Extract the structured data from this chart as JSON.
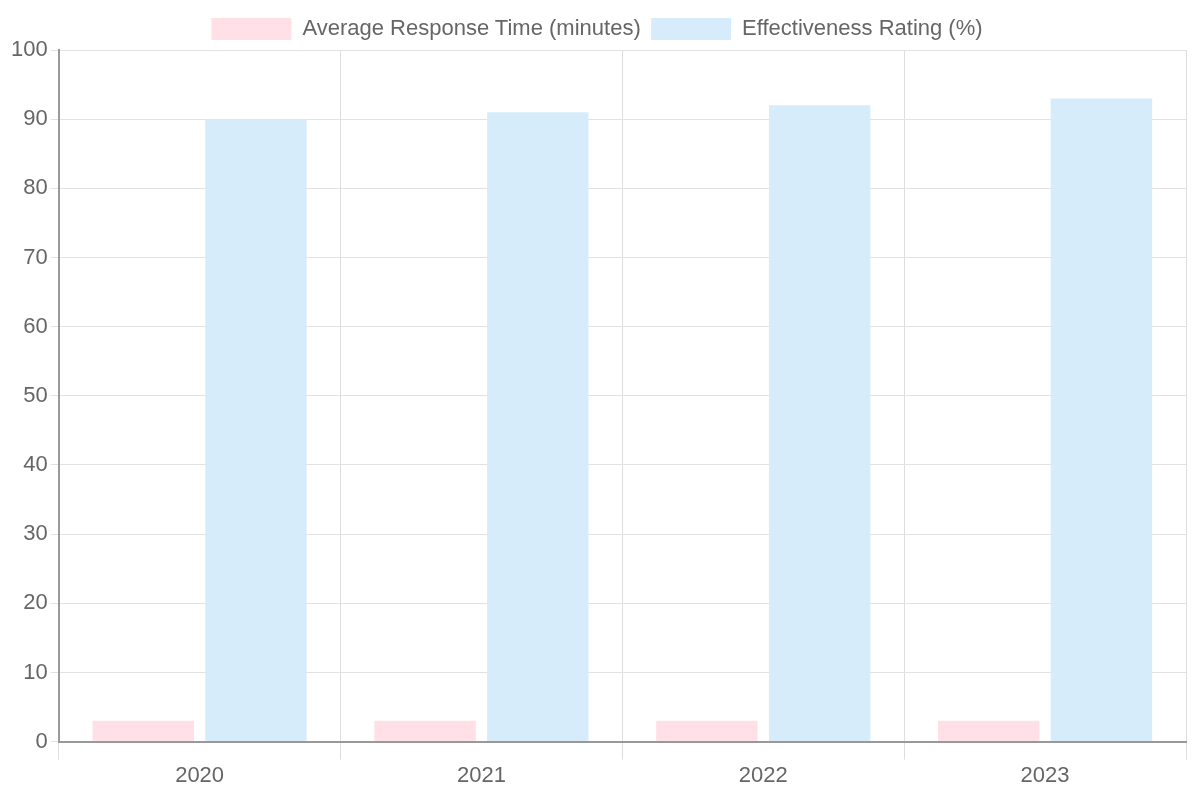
{
  "chart_data": {
    "type": "bar",
    "categories": [
      "2020",
      "2021",
      "2022",
      "2023"
    ],
    "series": [
      {
        "name": "Average Response Time (minutes)",
        "color": "#ffe0e6",
        "values": [
          3,
          3,
          3,
          3
        ]
      },
      {
        "name": "Effectiveness Rating (%)",
        "color": "#d7ecfb",
        "values": [
          90,
          91,
          92,
          93
        ]
      }
    ],
    "ylim": [
      0,
      100
    ],
    "yticks": [
      0,
      10,
      20,
      30,
      40,
      50,
      60,
      70,
      80,
      90,
      100
    ],
    "grid": true,
    "legend": "top"
  }
}
